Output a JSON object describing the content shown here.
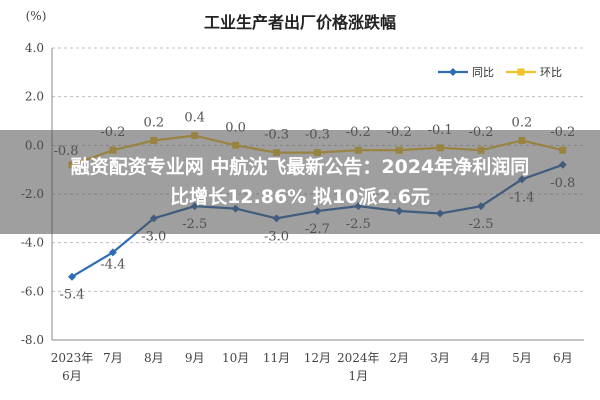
{
  "chart_data": {
    "type": "line",
    "title": "工业生产者出厂价格涨跌幅",
    "ylabel": "(%)",
    "ylim": [
      -8.0,
      4.0
    ],
    "yticks": [
      "4.0",
      "2.0",
      "0.0",
      "-2.0",
      "-4.0",
      "-6.0",
      "-8.0"
    ],
    "ytick_values": [
      4,
      2,
      0,
      -2,
      -4,
      -6,
      -8
    ],
    "categories": [
      "2023年6月",
      "7月",
      "8月",
      "9月",
      "10月",
      "11月",
      "12月",
      "2024年1月",
      "2月",
      "3月",
      "4月",
      "5月",
      "6月"
    ],
    "category_lines": [
      [
        "2023年",
        "6月"
      ],
      [
        "7月"
      ],
      [
        "8月"
      ],
      [
        "9月"
      ],
      [
        "10月"
      ],
      [
        "11月"
      ],
      [
        "12月"
      ],
      [
        "2024年",
        "1月"
      ],
      [
        "2月"
      ],
      [
        "3月"
      ],
      [
        "4月"
      ],
      [
        "5月"
      ],
      [
        "6月"
      ]
    ],
    "series": [
      {
        "name": "同比",
        "color": "#2E6DB4",
        "values": [
          -5.4,
          -4.4,
          -3.0,
          -2.5,
          -2.6,
          -3.0,
          -2.7,
          -2.5,
          -2.7,
          -2.8,
          -2.5,
          -1.4,
          -0.8
        ],
        "labels": [
          "-5.4",
          "-4.4",
          "-3.0",
          "-2.5",
          "",
          "-3.0",
          "-2.7",
          "-2.5",
          "",
          "",
          "-2.5",
          "-1.4",
          "-0.8"
        ]
      },
      {
        "name": "环比",
        "color": "#F2C12E",
        "values": [
          -0.8,
          -0.2,
          0.2,
          0.4,
          0.0,
          -0.3,
          -0.3,
          -0.2,
          -0.2,
          -0.1,
          -0.2,
          0.2,
          -0.2
        ],
        "labels": [
          "-0.8",
          "-0.2",
          "0.2",
          "0.4",
          "0.0",
          "-0.3",
          "-0.3",
          "-0.2",
          "-0.2",
          "-0.1",
          "-0.2",
          "0.2",
          "-0.2"
        ]
      }
    ],
    "legend_position": "top-right",
    "grid": true
  },
  "overlay": {
    "line1": "融资配资专业网 中航沈飞最新公告：2024年净利润同",
    "line2": "比增长12.86% 拟10派2.6元"
  }
}
